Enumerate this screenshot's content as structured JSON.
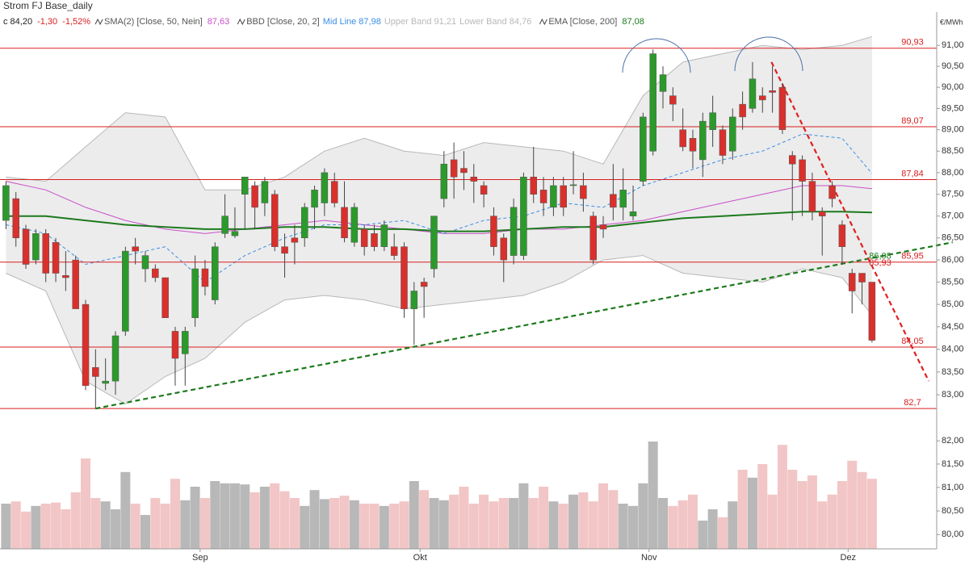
{
  "chart_data": {
    "type": "candlestick",
    "title": "Strom FJ Base_daily",
    "y_unit": "€/MWh",
    "readout": {
      "close": "c 84,20",
      "change": "-1,30",
      "change_pct": "-1,52%"
    },
    "readout_colors": {
      "close": "#222222",
      "change": "#d81e1e",
      "change_pct": "#d81e1e"
    },
    "log_scale": true,
    "xlim": [
      -0.6,
      93.5
    ],
    "ylim": [
      79.7,
      91.8
    ],
    "volume_lim": [
      0,
      100
    ],
    "up_color": "#2b9a2b",
    "down_color": "#d9302c",
    "volume_up_color": "#b8b8b8",
    "volume_down_color": "#f2c6c6",
    "xticks": [
      {
        "value": 19.5,
        "label": "Sep"
      },
      {
        "value": 41.6,
        "label": "Okt"
      },
      {
        "value": 64.6,
        "label": "Nov"
      },
      {
        "value": 84.6,
        "label": "Dez"
      }
    ],
    "yticks": [
      {
        "value": 80,
        "label": "80,00"
      },
      {
        "value": 80.5,
        "label": "80,50"
      },
      {
        "value": 81,
        "label": "81,00"
      },
      {
        "value": 81.5,
        "label": "81,50"
      },
      {
        "value": 82,
        "label": "82,00"
      },
      {
        "value": 83,
        "label": "83,00"
      },
      {
        "value": 83.5,
        "label": "83,50"
      },
      {
        "value": 84,
        "label": "84,00"
      },
      {
        "value": 84.5,
        "label": "84,50"
      },
      {
        "value": 85,
        "label": "85,00"
      },
      {
        "value": 85.5,
        "label": "85,50"
      },
      {
        "value": 86,
        "label": "86,00"
      },
      {
        "value": 86.5,
        "label": "86,50"
      },
      {
        "value": 87,
        "label": "87,00"
      },
      {
        "value": 87.5,
        "label": "87,50"
      },
      {
        "value": 88,
        "label": "88,00"
      },
      {
        "value": 88.5,
        "label": "88,50"
      },
      {
        "value": 89,
        "label": "89,00"
      },
      {
        "value": 89.5,
        "label": "89,50"
      },
      {
        "value": 90,
        "label": "90,00"
      },
      {
        "value": 90.5,
        "label": "90,50"
      },
      {
        "value": 91,
        "label": "91,00"
      }
    ],
    "candles": {
      "x": [
        0,
        1,
        2,
        3,
        4,
        5,
        6,
        7,
        8,
        9,
        10,
        11,
        12,
        13,
        14,
        15,
        16,
        17,
        18,
        19,
        20,
        21,
        22,
        23,
        24,
        25,
        26,
        27,
        28,
        29,
        30,
        31,
        32,
        33,
        34,
        35,
        36,
        37,
        38,
        39,
        40,
        41,
        42,
        43,
        44,
        45,
        46,
        47,
        48,
        49,
        50,
        51,
        52,
        53,
        54,
        55,
        56,
        57,
        58,
        59,
        60,
        61,
        62,
        63,
        64,
        65,
        66,
        67,
        68,
        69,
        70,
        71,
        72,
        73,
        74,
        75,
        76,
        77,
        78,
        79,
        80,
        81,
        82,
        83,
        84,
        85,
        86,
        87
      ],
      "open": [
        86.9,
        87.4,
        86.7,
        86.0,
        86.6,
        86.4,
        85.65,
        86.0,
        85.0,
        83.6,
        83.25,
        83.3,
        84.4,
        86.3,
        85.8,
        85.8,
        85.6,
        84.4,
        83.9,
        84.7,
        85.8,
        85.1,
        86.6,
        86.55,
        87.5,
        87.7,
        87.3,
        87.5,
        86.3,
        86.5,
        86.5,
        87.2,
        87.3,
        87.8,
        87.2,
        86.4,
        86.7,
        86.6,
        86.3,
        86.3,
        86.3,
        84.9,
        85.5,
        85.8,
        87.4,
        88.3,
        88.1,
        87.9,
        87.7,
        87.0,
        86.5,
        86.1,
        86.1,
        87.9,
        87.6,
        87.2,
        87.7,
        87.7,
        87.7,
        87.0,
        86.8,
        87.5,
        87.2,
        87.0,
        87.8,
        88.5,
        89.9,
        89.8,
        89.0,
        88.8,
        88.3,
        89.0,
        89.0,
        88.5,
        89.6,
        89.5,
        89.8,
        89.92,
        90.0,
        88.4,
        88.3,
        87.8,
        87.1,
        87.7,
        86.8,
        85.7,
        85.7,
        85.5
      ],
      "high": [
        87.8,
        87.55,
        86.8,
        86.7,
        86.7,
        86.5,
        86.2,
        86.1,
        85.1,
        84.0,
        83.8,
        84.4,
        86.3,
        86.5,
        86.2,
        85.9,
        85.6,
        84.5,
        84.5,
        86.1,
        86.0,
        86.4,
        87.5,
        87.2,
        87.9,
        87.8,
        87.9,
        87.6,
        86.6,
        86.8,
        87.3,
        87.7,
        88.1,
        88.0,
        87.8,
        87.3,
        86.8,
        86.8,
        86.9,
        86.6,
        86.4,
        85.5,
        85.6,
        87.0,
        88.5,
        88.7,
        88.5,
        88.2,
        87.8,
        87.2,
        86.6,
        87.4,
        88.0,
        88.6,
        87.9,
        87.9,
        87.9,
        88.5,
        88.0,
        87.1,
        87.0,
        88.2,
        88.1,
        87.7,
        89.4,
        90.9,
        90.5,
        90.0,
        89.5,
        89.0,
        89.4,
        89.8,
        89.1,
        89.5,
        89.9,
        90.6,
        90.0,
        90.5,
        90.1,
        88.5,
        88.4,
        88.0,
        87.2,
        87.8,
        86.9,
        85.8,
        85.7,
        85.5
      ],
      "low": [
        86.7,
        86.3,
        85.8,
        85.9,
        85.5,
        85.5,
        85.3,
        84.9,
        83.1,
        82.7,
        83.1,
        83.0,
        84.3,
        85.9,
        85.5,
        85.5,
        84.7,
        83.2,
        83.2,
        84.5,
        85.2,
        85.0,
        86.5,
        86.5,
        86.7,
        86.7,
        87.0,
        86.2,
        85.6,
        85.9,
        86.3,
        86.7,
        87.0,
        87.2,
        86.4,
        86.3,
        86.1,
        86.2,
        86.2,
        86.0,
        84.7,
        84.1,
        84.7,
        85.6,
        87.2,
        87.4,
        87.6,
        87.3,
        87.2,
        86.1,
        85.5,
        85.9,
        86.0,
        87.3,
        87.0,
        87.0,
        87.0,
        87.5,
        87.1,
        85.9,
        86.5,
        86.9,
        86.9,
        86.9,
        87.7,
        88.4,
        89.5,
        89.2,
        88.5,
        88.1,
        87.9,
        88.6,
        88.2,
        88.3,
        89.0,
        89.4,
        89.4,
        89.4,
        88.9,
        86.9,
        87.0,
        86.9,
        86.1,
        87.2,
        85.9,
        84.8,
        85.0,
        84.15
      ],
      "close": [
        87.7,
        86.5,
        85.9,
        86.6,
        85.7,
        85.7,
        85.6,
        84.9,
        83.2,
        83.4,
        83.3,
        84.3,
        86.2,
        86.2,
        86.1,
        85.6,
        84.7,
        83.8,
        84.4,
        85.8,
        85.4,
        86.3,
        87.0,
        86.65,
        87.9,
        87.2,
        87.8,
        86.3,
        86.15,
        86.4,
        87.2,
        87.6,
        88.0,
        87.3,
        86.5,
        87.2,
        86.3,
        86.3,
        86.8,
        86.1,
        84.9,
        85.3,
        85.4,
        87.0,
        88.2,
        87.9,
        88.0,
        87.8,
        87.5,
        86.3,
        86.0,
        87.2,
        87.9,
        87.5,
        87.3,
        87.7,
        87.2,
        87.72,
        87.4,
        86.0,
        86.7,
        87.2,
        87.6,
        87.1,
        89.3,
        90.8,
        90.3,
        89.6,
        88.6,
        88.5,
        89.2,
        89.4,
        88.4,
        89.3,
        89.3,
        90.2,
        89.7,
        89.88,
        89.0,
        88.2,
        87.8,
        87.1,
        87.0,
        87.4,
        86.3,
        85.3,
        85.5,
        84.2
      ],
      "volume": [
        40,
        42,
        33,
        38,
        40,
        41,
        35,
        50,
        80,
        45,
        42,
        35,
        68,
        40,
        30,
        45,
        40,
        62,
        43,
        55,
        45,
        60,
        58,
        58,
        57,
        50,
        55,
        58,
        51,
        45,
        38,
        52,
        44,
        45,
        47,
        43,
        40,
        40,
        38,
        40,
        42,
        60,
        52,
        45,
        43,
        48,
        55,
        40,
        48,
        42,
        45,
        45,
        58,
        45,
        55,
        42,
        40,
        48,
        50,
        42,
        58,
        52,
        40,
        38,
        58,
        95,
        45,
        38,
        43,
        48,
        25,
        35,
        28,
        42,
        70,
        63,
        75,
        48,
        92,
        70,
        60,
        65,
        42,
        48,
        60,
        78,
        68,
        62
      ]
    },
    "overlay_x": [
      0,
      4,
      8,
      12,
      16,
      20,
      24,
      28,
      32,
      36,
      40,
      44,
      48,
      52,
      56,
      60,
      64,
      68,
      72,
      76,
      80,
      84,
      87
    ],
    "indicators": [
      {
        "name": "SMA(2) [Close, 50, Nein]",
        "lines": [
          {
            "value_label": "87,63",
            "color": "#c94fc9",
            "width": 1,
            "values": [
              87.8,
              87.6,
              87.2,
              86.9,
              86.7,
              86.6,
              86.7,
              86.8,
              86.9,
              86.8,
              86.7,
              86.6,
              86.6,
              86.7,
              86.7,
              86.8,
              86.9,
              87.1,
              87.3,
              87.5,
              87.7,
              87.7,
              87.63
            ]
          }
        ]
      },
      {
        "name": "BBD [Close, 20, 2]",
        "fill": "#ececec",
        "lines": [
          {
            "label": "Mid Line",
            "value_label": "87,98",
            "color": "#3a8ee6",
            "width": 1,
            "dashed": true,
            "values": [
              86.8,
              86.6,
              85.9,
              86.1,
              86.3,
              85.5,
              86.1,
              86.5,
              86.8,
              86.8,
              86.9,
              86.6,
              86.9,
              87.0,
              87.3,
              87.2,
              87.7,
              88.0,
              88.3,
              88.5,
              88.9,
              88.8,
              87.98
            ]
          },
          {
            "label": "Upper Band",
            "value_label": "91,21",
            "color": "#b8b8b8",
            "width": 1,
            "values": [
              87.9,
              87.8,
              88.6,
              89.4,
              89.3,
              87.6,
              87.6,
              87.9,
              88.5,
              88.8,
              88.5,
              88.4,
              88.7,
              88.6,
              88.5,
              88.2,
              89.8,
              90.6,
              90.8,
              91.0,
              90.9,
              91.0,
              91.21
            ]
          },
          {
            "label": "Lower Band",
            "value_label": "84,76",
            "color": "#b8b8b8",
            "width": 1,
            "values": [
              85.7,
              85.3,
              83.3,
              82.8,
              83.4,
              83.8,
              84.6,
              85.1,
              85.2,
              85.1,
              84.9,
              85.0,
              85.1,
              85.2,
              85.5,
              86.0,
              86.1,
              85.7,
              85.6,
              85.5,
              85.8,
              85.6,
              84.76
            ]
          }
        ]
      },
      {
        "name": "EMA [Close, 200]",
        "lines": [
          {
            "value_label": "87,08",
            "color": "#1c7a1c",
            "width": 2,
            "values": [
              87.0,
              87.0,
              86.9,
              86.8,
              86.75,
              86.7,
              86.7,
              86.75,
              86.75,
              86.7,
              86.7,
              86.65,
              86.65,
              86.7,
              86.75,
              86.75,
              86.85,
              86.95,
              87.0,
              87.05,
              87.1,
              87.1,
              87.08
            ]
          }
        ]
      }
    ],
    "indicator_name_color": "#555555",
    "level_color": "#d81e1e",
    "levels": [
      {
        "value": 90.93,
        "label": "90,93"
      },
      {
        "value": 89.07,
        "label": "89,07"
      },
      {
        "value": 87.84,
        "label": "87,84"
      },
      {
        "value": 85.95,
        "label": "85,95"
      },
      {
        "value": 84.05,
        "label": "84,05"
      },
      {
        "value": 82.7,
        "label": "82,7"
      }
    ],
    "trendlines": [
      {
        "color": "#1c7a1c",
        "x": [
          9,
          95.1
        ],
        "values": [
          82.7,
          86.4
        ]
      },
      {
        "color": "#e02020",
        "x": [
          76.9,
          92.7
        ],
        "values": [
          90.6,
          83.3
        ]
      }
    ],
    "point_labels": [
      {
        "value": 85.93,
        "label": "85,93",
        "color": "#d81e1e"
      },
      {
        "value": 86.08,
        "label": "86,08",
        "color": "#1c7a1c"
      }
    ]
  }
}
